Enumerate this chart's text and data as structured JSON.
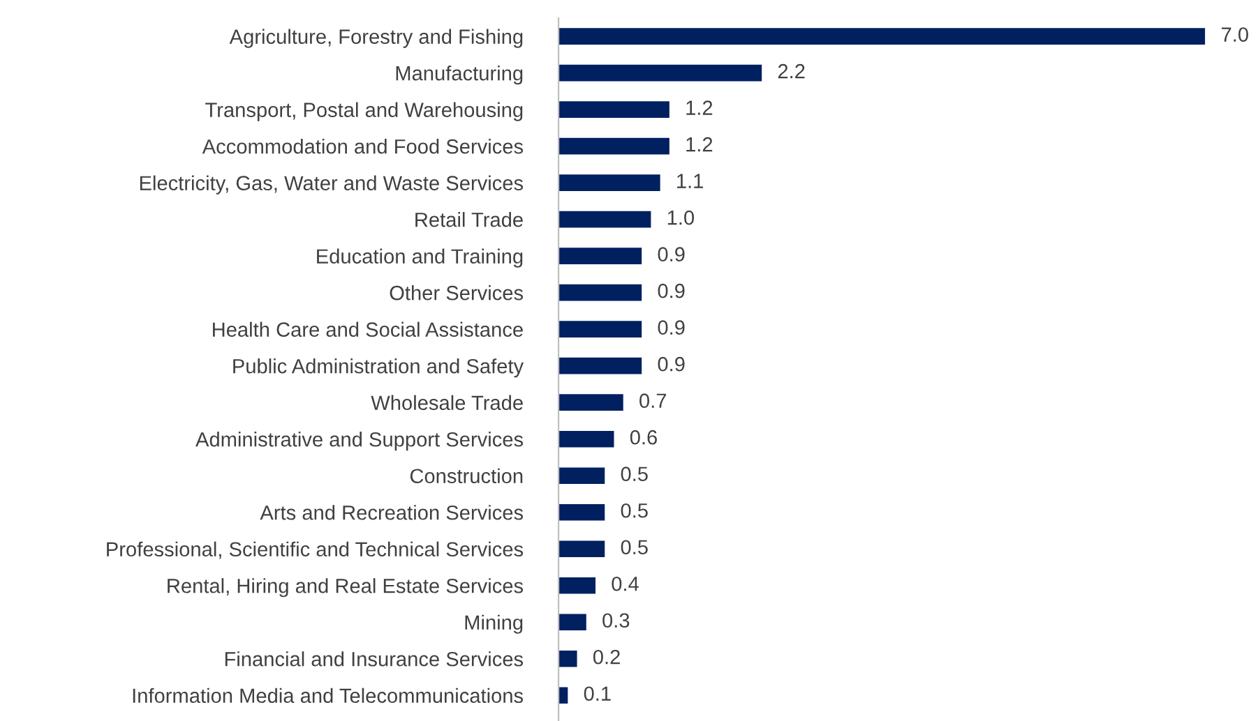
{
  "chart_data": {
    "type": "bar",
    "orientation": "horizontal",
    "value_labels": [
      "7.0",
      "2.2",
      "1.2",
      "1.2",
      "1.1",
      "1.0",
      "0.9",
      "0.9",
      "0.9",
      "0.9",
      "0.7",
      "0.6",
      "0.5",
      "0.5",
      "0.5",
      "0.4",
      "0.3",
      "0.2",
      "0.1"
    ],
    "color": "#002060",
    "categories": [
      "Agriculture, Forestry and Fishing",
      "Manufacturing",
      "Transport, Postal and Warehousing",
      "Accommodation and Food Services",
      "Electricity, Gas, Water and Waste Services",
      "Retail Trade",
      "Education and Training",
      "Other Services",
      "Health Care and Social Assistance",
      "Public Administration and Safety",
      "Wholesale Trade",
      "Administrative and Support Services",
      "Construction",
      "Arts and Recreation Services",
      "Professional, Scientific and Technical Services",
      "Rental, Hiring and Real Estate Services",
      "Mining",
      "Financial and Insurance Services",
      "Information Media and Telecommunications"
    ],
    "values": [
      7.0,
      2.2,
      1.2,
      1.2,
      1.1,
      1.0,
      0.9,
      0.9,
      0.9,
      0.9,
      0.7,
      0.6,
      0.5,
      0.5,
      0.5,
      0.4,
      0.3,
      0.2,
      0.1
    ]
  }
}
